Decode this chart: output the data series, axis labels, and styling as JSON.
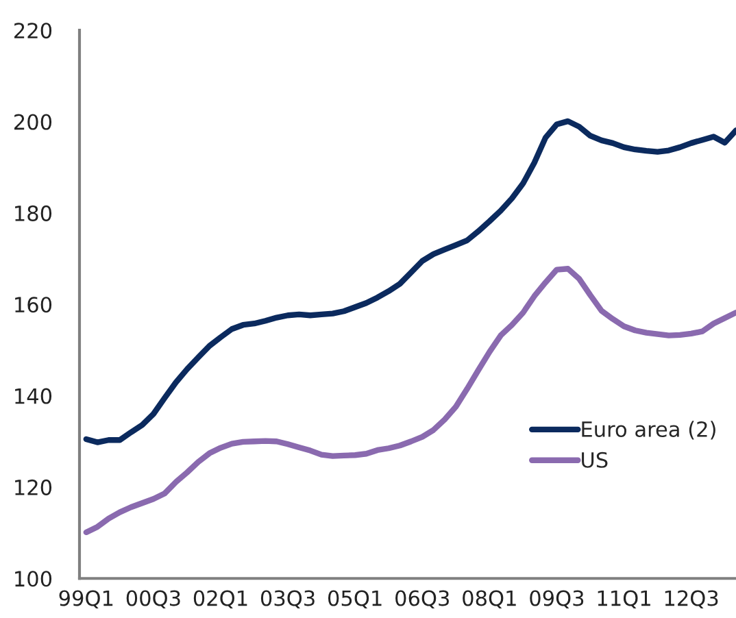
{
  "chart_data": {
    "type": "line",
    "categories": [
      "99Q1",
      null,
      null,
      null,
      null,
      null,
      "00Q3",
      null,
      null,
      null,
      null,
      null,
      "02Q1",
      null,
      null,
      null,
      null,
      null,
      "03Q3",
      null,
      null,
      null,
      null,
      null,
      "05Q1",
      null,
      null,
      null,
      null,
      null,
      "06Q3",
      null,
      null,
      null,
      null,
      null,
      "08Q1",
      null,
      null,
      null,
      null,
      null,
      "09Q3",
      null,
      null,
      null,
      null,
      null,
      "11Q1",
      null,
      null,
      null,
      null,
      null,
      "12Q3",
      null,
      null,
      null,
      null
    ],
    "series": [
      {
        "name": "Euro area (2)",
        "color": "#0b2a5e",
        "values": [
          130.5,
          129.8,
          130.3,
          130.3,
          132,
          133.6,
          136,
          139.5,
          142.9,
          145.8,
          148.4,
          150.9,
          152.8,
          154.6,
          155.5,
          155.8,
          156.4,
          157.1,
          157.6,
          157.8,
          157.6,
          157.8,
          158,
          158.5,
          159.4,
          160.3,
          161.5,
          162.9,
          164.5,
          167,
          169.5,
          171,
          172,
          173,
          174,
          176,
          178.2,
          180.5,
          183.2,
          186.5,
          191,
          196.5,
          199.4,
          200.1,
          198.9,
          196.9,
          195.9,
          195.3,
          194.4,
          193.9,
          193.6,
          193.4,
          193.7,
          194.4,
          195.3,
          196,
          196.7,
          195.4,
          198.1
        ]
      },
      {
        "name": "US",
        "color": "#8a6aaf",
        "values": [
          110.1,
          111.3,
          113.1,
          114.5,
          115.6,
          116.5,
          117.4,
          118.6,
          121.1,
          123.2,
          125.5,
          127.4,
          128.6,
          129.5,
          129.9,
          130,
          130.1,
          130,
          129.4,
          128.7,
          128,
          127.1,
          126.8,
          126.9,
          127,
          127.3,
          128.1,
          128.5,
          129.1,
          130,
          131,
          132.5,
          134.8,
          137.6,
          141.5,
          145.6,
          149.6,
          153.2,
          155.5,
          158.2,
          161.8,
          164.8,
          167.6,
          167.8,
          165.6,
          162,
          158.6,
          156.8,
          155.2,
          154.3,
          153.8,
          153.5,
          153.2,
          153.3,
          153.6,
          154.1,
          155.8,
          157,
          158.2
        ]
      }
    ],
    "ylim": [
      100,
      220
    ],
    "yticks": [
      100,
      120,
      140,
      160,
      180,
      200,
      220
    ],
    "grid": false,
    "legend": "bottom right",
    "line_style": "solid"
  }
}
